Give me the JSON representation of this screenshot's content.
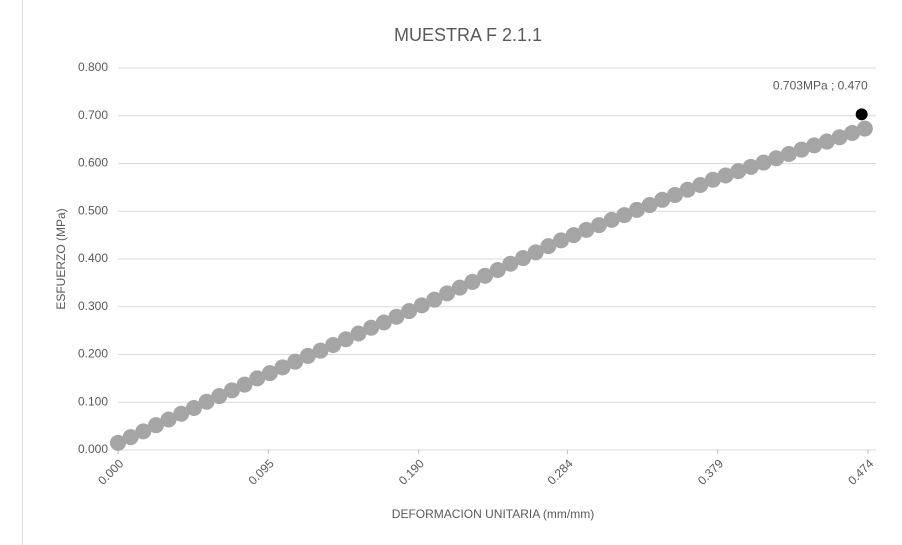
{
  "chart_data": {
    "type": "scatter",
    "title": "MUESTRA F 2.1.1",
    "x_label": "DEFORMACION UNITARIA (mm/mm)",
    "y_label": "ESFUERZO (MPa)",
    "xlim": [
      0,
      0.474
    ],
    "ylim": [
      0,
      0.8
    ],
    "xticks": [
      {
        "value": 0,
        "label": "0.000"
      },
      {
        "value": 0.095,
        "label": "0.095"
      },
      {
        "value": 0.19,
        "label": "0.190"
      },
      {
        "value": 0.284,
        "label": "0.284"
      },
      {
        "value": 0.379,
        "label": "0.379"
      },
      {
        "value": 0.474,
        "label": "0.474"
      }
    ],
    "yticks": [
      {
        "value": 0,
        "label": "0.000"
      },
      {
        "value": 0.1,
        "label": "0.100"
      },
      {
        "value": 0.2,
        "label": "0.200"
      },
      {
        "value": 0.3,
        "label": "0.300"
      },
      {
        "value": 0.4,
        "label": "0.400"
      },
      {
        "value": 0.5,
        "label": "0.500"
      },
      {
        "value": 0.6,
        "label": "0.600"
      },
      {
        "value": 0.7,
        "label": "0.700"
      },
      {
        "value": 0.8,
        "label": "0.800"
      }
    ],
    "grid": true,
    "series": [
      {
        "color": "#a5a5a5",
        "x": [
          0,
          0.008,
          0.016,
          0.024,
          0.032,
          0.04,
          0.048,
          0.056,
          0.064,
          0.072,
          0.08,
          0.088,
          0.096,
          0.104,
          0.112,
          0.12,
          0.128,
          0.136,
          0.144,
          0.152,
          0.16,
          0.168,
          0.176,
          0.184,
          0.192,
          0.2,
          0.208,
          0.216,
          0.224,
          0.232,
          0.24,
          0.248,
          0.256,
          0.264,
          0.272,
          0.28,
          0.288,
          0.296,
          0.304,
          0.312,
          0.32,
          0.328,
          0.336,
          0.344,
          0.352,
          0.36,
          0.368,
          0.376,
          0.384,
          0.392,
          0.4,
          0.408,
          0.416,
          0.424,
          0.432,
          0.44,
          0.448,
          0.456,
          0.464,
          0.472
        ],
        "values": [
          0.015,
          0.027,
          0.039,
          0.052,
          0.064,
          0.076,
          0.088,
          0.101,
          0.113,
          0.125,
          0.137,
          0.15,
          0.161,
          0.173,
          0.185,
          0.197,
          0.208,
          0.22,
          0.232,
          0.244,
          0.256,
          0.267,
          0.279,
          0.291,
          0.303,
          0.315,
          0.328,
          0.34,
          0.352,
          0.365,
          0.377,
          0.39,
          0.402,
          0.414,
          0.427,
          0.439,
          0.45,
          0.461,
          0.471,
          0.482,
          0.492,
          0.503,
          0.513,
          0.524,
          0.534,
          0.545,
          0.555,
          0.566,
          0.575,
          0.584,
          0.593,
          0.602,
          0.611,
          0.62,
          0.629,
          0.638,
          0.646,
          0.655,
          0.664,
          0.673
        ]
      },
      {
        "color": "#000000",
        "x": [
          0.47
        ],
        "values": [
          0.703
        ],
        "value_labels": [
          "0.703MPa ; 0.470"
        ]
      }
    ]
  }
}
